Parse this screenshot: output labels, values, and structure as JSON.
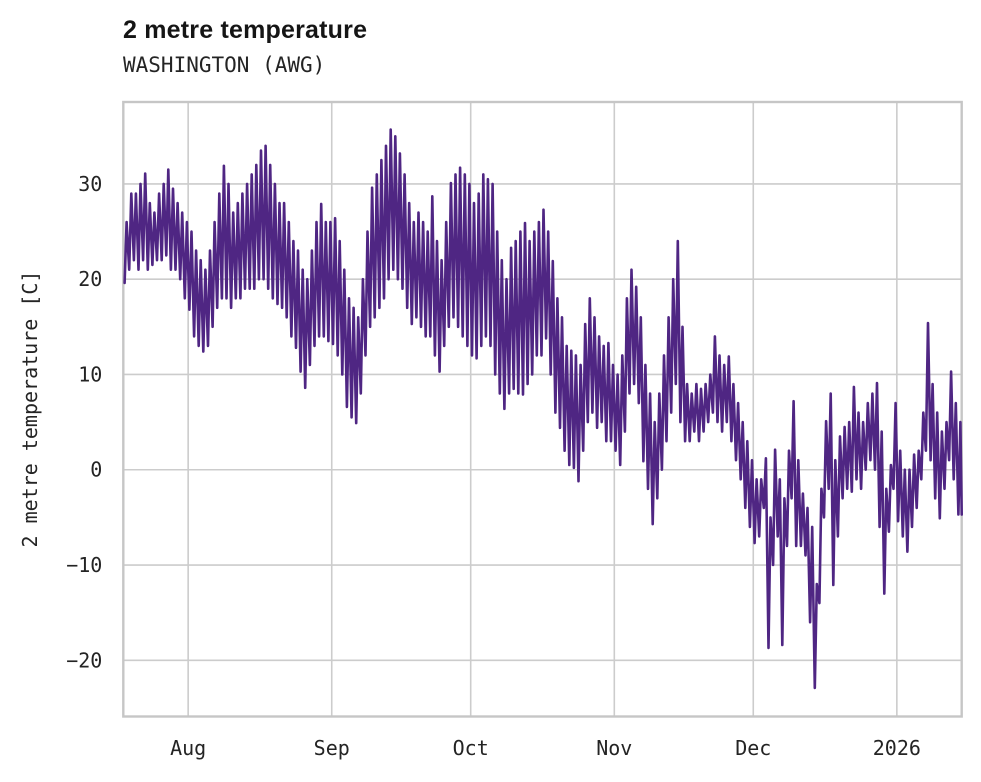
{
  "header": {
    "title": "2 metre temperature",
    "subtitle": "WASHINGTON (AWG)"
  },
  "chart_data": {
    "type": "line",
    "title": "2 metre temperature",
    "subtitle": "WASHINGTON (AWG)",
    "xlabel": "",
    "ylabel": "2 metre temperature [C]",
    "grid": true,
    "legend": "none",
    "line_color": "#4f2683",
    "grid_color": "#cccccc",
    "x_unit": "day_index",
    "x_range": [
      0,
      181
    ],
    "y_range": [
      -25.9,
      38.6
    ],
    "y_ticks": [
      {
        "value": 30,
        "label": "30"
      },
      {
        "value": 20,
        "label": "20"
      },
      {
        "value": 10,
        "label": "10"
      },
      {
        "value": 0,
        "label": "0"
      },
      {
        "value": -10,
        "label": "−10"
      },
      {
        "value": -20,
        "label": "−20"
      }
    ],
    "x_ticks": [
      {
        "day": 14,
        "label": "Aug"
      },
      {
        "day": 45,
        "label": "Sep"
      },
      {
        "day": 75,
        "label": "Oct"
      },
      {
        "day": 106,
        "label": "Nov"
      },
      {
        "day": 136,
        "label": "Dec"
      },
      {
        "day": 167,
        "label": "2026"
      }
    ],
    "daily_min_max": [
      [
        19.6,
        26
      ],
      [
        21,
        29
      ],
      [
        22,
        29
      ],
      [
        21,
        30
      ],
      [
        22,
        31.1
      ],
      [
        21,
        28
      ],
      [
        21.5,
        27
      ],
      [
        22,
        29
      ],
      [
        22,
        30
      ],
      [
        22.5,
        31.5
      ],
      [
        21,
        29.5
      ],
      [
        21,
        28
      ],
      [
        20,
        27
      ],
      [
        18,
        26
      ],
      [
        16.8,
        25
      ],
      [
        14,
        23
      ],
      [
        13,
        22
      ],
      [
        12.4,
        21
      ],
      [
        13,
        23
      ],
      [
        15,
        26
      ],
      [
        17,
        29
      ],
      [
        18,
        31.9
      ],
      [
        18,
        30
      ],
      [
        17,
        27
      ],
      [
        18,
        28
      ],
      [
        18,
        29
      ],
      [
        19,
        30
      ],
      [
        19,
        31
      ],
      [
        19,
        32
      ],
      [
        20,
        33.5
      ],
      [
        20,
        34
      ],
      [
        19,
        32
      ],
      [
        18,
        30
      ],
      [
        17.4,
        28
      ],
      [
        17,
        28
      ],
      [
        16,
        26
      ],
      [
        14,
        24
      ],
      [
        12.8,
        23
      ],
      [
        10.3,
        21
      ],
      [
        8.6,
        20
      ],
      [
        11,
        23
      ],
      [
        13,
        26
      ],
      [
        14,
        27.9
      ],
      [
        14,
        26
      ],
      [
        13.5,
        26
      ],
      [
        13.2,
        26.4
      ],
      [
        12,
        24
      ],
      [
        10,
        21
      ],
      [
        6.6,
        18
      ],
      [
        5.5,
        17
      ],
      [
        4.9,
        16
      ],
      [
        8,
        20
      ],
      [
        12,
        25
      ],
      [
        15,
        29.6
      ],
      [
        16,
        31
      ],
      [
        17,
        32.5
      ],
      [
        18,
        34
      ],
      [
        20,
        35.7
      ],
      [
        21,
        35
      ],
      [
        20,
        33.2
      ],
      [
        19,
        31
      ],
      [
        17,
        28
      ],
      [
        15.3,
        26
      ],
      [
        16,
        27
      ],
      [
        15,
        26
      ],
      [
        14,
        25
      ],
      [
        14,
        28.7
      ],
      [
        12,
        24
      ],
      [
        10.3,
        22
      ],
      [
        13,
        26
      ],
      [
        15,
        30.1
      ],
      [
        16,
        31
      ],
      [
        15,
        31.7
      ],
      [
        14,
        31
      ],
      [
        13,
        30
      ],
      [
        12,
        28
      ],
      [
        11.7,
        29
      ],
      [
        13,
        31
      ],
      [
        14,
        30.5
      ],
      [
        13,
        30
      ],
      [
        10,
        25
      ],
      [
        8,
        22
      ],
      [
        6.4,
        20
      ],
      [
        8,
        23.3
      ],
      [
        8.5,
        24
      ],
      [
        8,
        25
      ],
      [
        7.9,
        25.9
      ],
      [
        9,
        24
      ],
      [
        10,
        25
      ],
      [
        12,
        26
      ],
      [
        12,
        27.3
      ],
      [
        13.8,
        25
      ],
      [
        10,
        21.9
      ],
      [
        6,
        18
      ],
      [
        4.4,
        16
      ],
      [
        2,
        13
      ],
      [
        0.5,
        12.5
      ],
      [
        0.2,
        12
      ],
      [
        -1.2,
        11
      ],
      [
        2,
        15.3
      ],
      [
        5,
        18
      ],
      [
        6,
        16
      ],
      [
        4.4,
        14
      ],
      [
        5,
        13
      ],
      [
        3,
        13.3
      ],
      [
        3,
        11
      ],
      [
        2,
        10
      ],
      [
        0.5,
        12
      ],
      [
        4,
        18
      ],
      [
        8,
        21
      ],
      [
        9,
        19.2
      ],
      [
        7,
        16
      ],
      [
        0.9,
        11
      ],
      [
        -2,
        8
      ],
      [
        -5.7,
        5
      ],
      [
        -3,
        8
      ],
      [
        0,
        12
      ],
      [
        3,
        16
      ],
      [
        6,
        20
      ],
      [
        9,
        24
      ],
      [
        5,
        15
      ],
      [
        3,
        9
      ],
      [
        3,
        8
      ],
      [
        4,
        9
      ],
      [
        3,
        8.5
      ],
      [
        4,
        9
      ],
      [
        5,
        10
      ],
      [
        6,
        14
      ],
      [
        5,
        12
      ],
      [
        4,
        11
      ],
      [
        5,
        11.9
      ],
      [
        3,
        9
      ],
      [
        1,
        7
      ],
      [
        -1,
        5
      ],
      [
        -4,
        3
      ],
      [
        -6,
        1
      ],
      [
        -7.7,
        -1
      ],
      [
        -7,
        -1
      ],
      [
        -4,
        1.2
      ],
      [
        -18.7,
        -5
      ],
      [
        -10,
        2.1
      ],
      [
        -7,
        -1
      ],
      [
        -18.4,
        -3
      ],
      [
        -8,
        2
      ],
      [
        -3,
        7.2
      ],
      [
        -8,
        1
      ],
      [
        -8,
        -2.5
      ],
      [
        -9,
        -4
      ],
      [
        -16,
        -6
      ],
      [
        -22.9,
        -12
      ],
      [
        -14,
        -2
      ],
      [
        -5,
        5.1
      ],
      [
        -2,
        8
      ],
      [
        -12.1,
        1
      ],
      [
        -7,
        3.5
      ],
      [
        -3,
        4.5
      ],
      [
        -2,
        5
      ],
      [
        -2.3,
        8.7
      ],
      [
        -1,
        6
      ],
      [
        -2,
        5
      ],
      [
        0,
        7
      ],
      [
        1,
        8
      ],
      [
        0,
        9.1
      ],
      [
        -6,
        4
      ],
      [
        -13,
        -2
      ],
      [
        -6.5,
        0.5
      ],
      [
        -2,
        7
      ],
      [
        -5.4,
        2
      ],
      [
        -7,
        0
      ],
      [
        -8.6,
        0
      ],
      [
        -6,
        1.6
      ],
      [
        -4,
        2
      ],
      [
        -1,
        6
      ],
      [
        2,
        15.4
      ],
      [
        1,
        9
      ],
      [
        -3,
        6
      ],
      [
        -5.1,
        4
      ],
      [
        -2,
        5
      ],
      [
        1,
        10.3
      ],
      [
        -1,
        7
      ],
      [
        -4.7,
        5
      ]
    ],
    "end_point": {
      "day": 181,
      "value": -4.7
    }
  }
}
